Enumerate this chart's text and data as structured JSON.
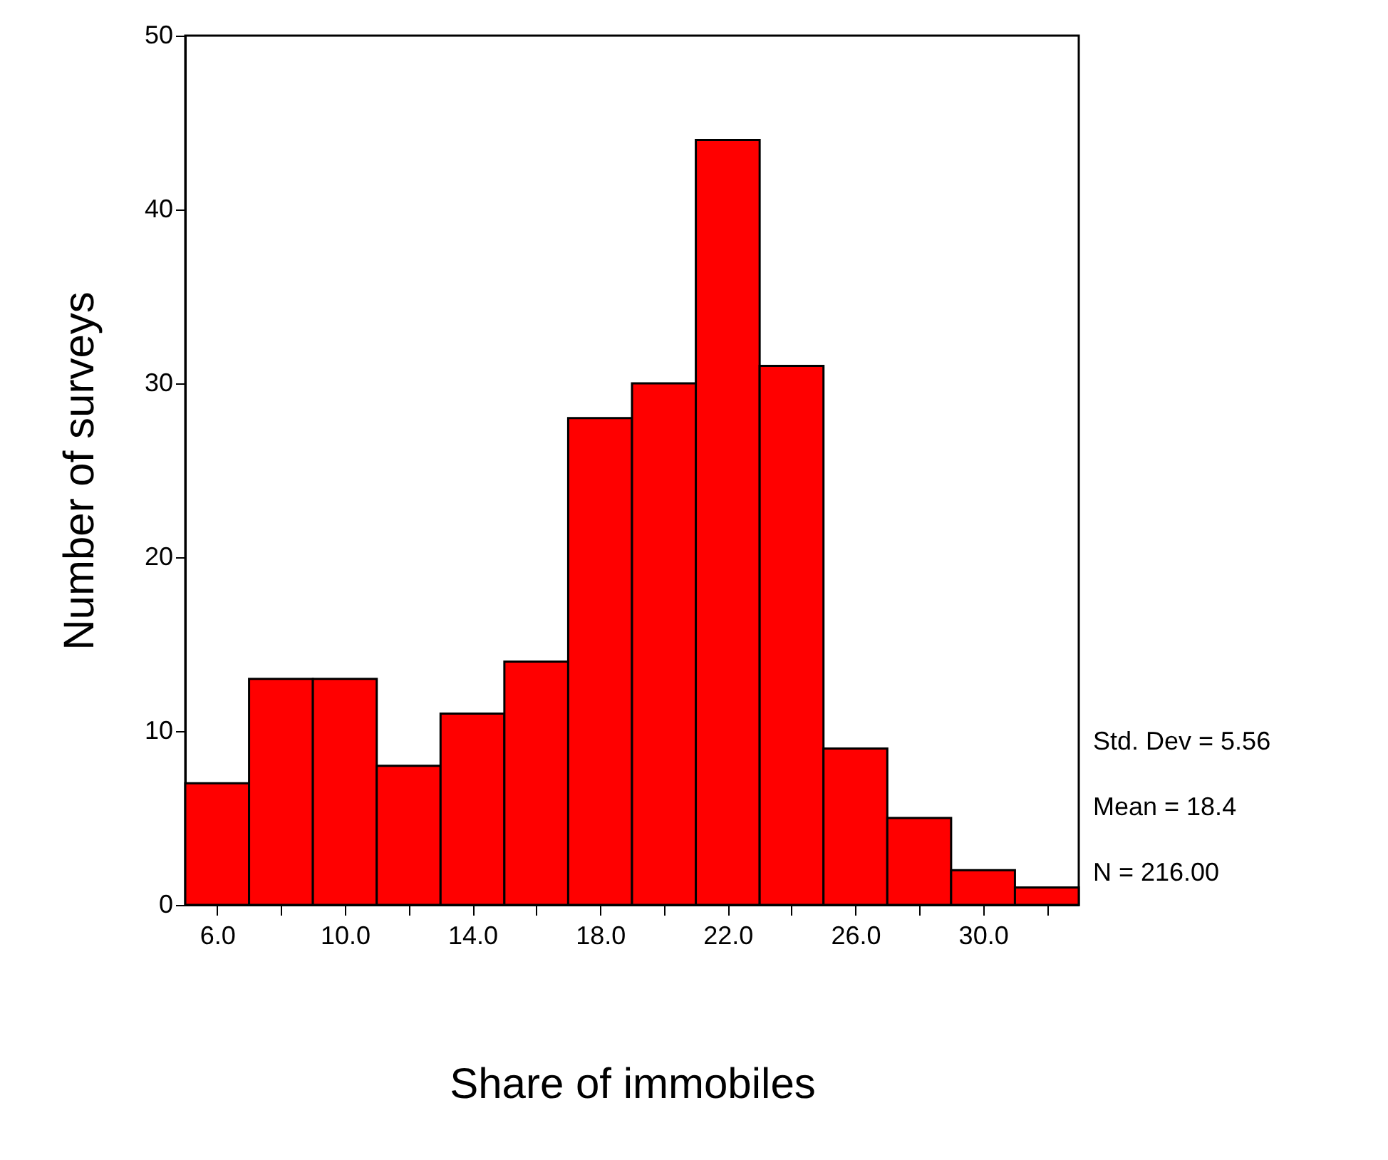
{
  "chart_data": {
    "type": "histogram",
    "xlabel": "Share of immobiles",
    "ylabel": "Number of surveys",
    "bins": [
      5,
      7,
      9,
      11,
      13,
      15,
      17,
      19,
      21,
      23,
      25,
      27,
      29,
      31,
      33
    ],
    "values": [
      7,
      13,
      13,
      8,
      11,
      14,
      28,
      30,
      44,
      31,
      9,
      5,
      2,
      1
    ],
    "color": "#ff0000",
    "xlim": [
      5,
      33
    ],
    "xticks": [
      {
        "value": 6,
        "label": "6.0"
      },
      {
        "value": 8,
        "label": null
      },
      {
        "value": 10,
        "label": "10.0"
      },
      {
        "value": 12,
        "label": null
      },
      {
        "value": 14,
        "label": "14.0"
      },
      {
        "value": 16,
        "label": null
      },
      {
        "value": 18,
        "label": "18.0"
      },
      {
        "value": 20,
        "label": null
      },
      {
        "value": 22,
        "label": "22.0"
      },
      {
        "value": 24,
        "label": null
      },
      {
        "value": 26,
        "label": "26.0"
      },
      {
        "value": 28,
        "label": null
      },
      {
        "value": 30,
        "label": "30.0"
      },
      {
        "value": 32,
        "label": null
      }
    ],
    "ylim": [
      0,
      50
    ],
    "yticks": [
      0,
      10,
      20,
      30,
      40,
      50
    ],
    "grid": false,
    "annotations": [
      "Std. Dev = 5.56",
      "Mean = 18.4",
      "N = 216.00"
    ]
  }
}
